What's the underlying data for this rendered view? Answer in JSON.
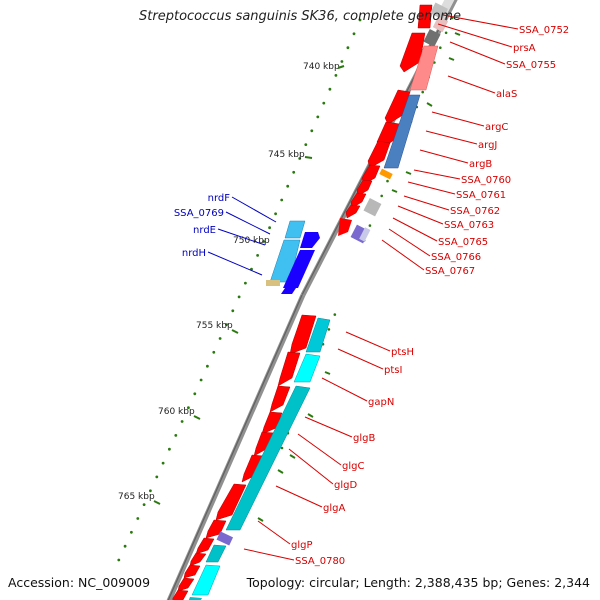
{
  "title": "Streptococcus sanguinis SK36, complete genome",
  "accession": "Accession: NC_009009",
  "topology": "Topology: circular; Length: 2,388,435 bp; Genes: 2,344",
  "colors": {
    "backbone": "#888888",
    "cds": "#ff0000",
    "gene_blue": "#1a00ff",
    "gene_cyan": "#00c8d8",
    "gene_pink": "#ff9090",
    "gene_steel": "#4a80c0",
    "gene_orange": "#ff9900",
    "gene_gray": "#b0b0b0",
    "gene_purple": "#7a6ad0",
    "gene_tan": "#d8c080",
    "ruler": "#2a7a10",
    "label_red": "#d80000",
    "label_blue": "#0000c0"
  },
  "kbp_labels": [
    "740 kbp",
    "745 kbp",
    "750 kbp",
    "755 kbp",
    "760 kbp",
    "765 kbp"
  ],
  "genes_right": [
    "SSA_0752",
    "prsA",
    "SSA_0755",
    "alaS",
    "argC",
    "argJ",
    "argB",
    "SSA_0760",
    "SSA_0761",
    "SSA_0762",
    "SSA_0763",
    "SSA_0765",
    "SSA_0766",
    "SSA_0767",
    "ptsH",
    "ptsI",
    "gapN",
    "glgB",
    "glgC",
    "glgD",
    "glgA",
    "glgP",
    "SSA_0780"
  ],
  "genes_left": [
    "nrdF",
    "SSA_0769",
    "nrdE",
    "nrdH"
  ]
}
